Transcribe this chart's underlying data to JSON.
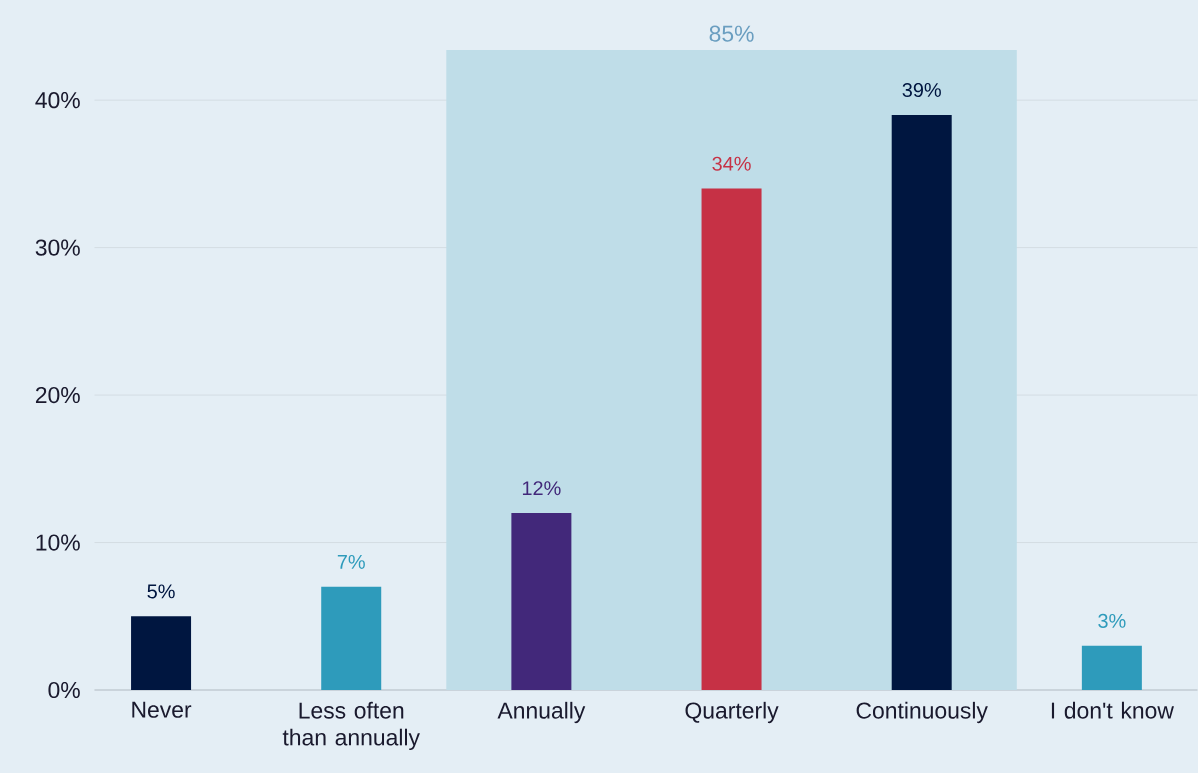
{
  "chart_data": {
    "type": "bar",
    "categories": [
      "Never",
      "Less often than annually",
      "Annually",
      "Quarterly",
      "Continuously",
      "I don't know"
    ],
    "values": [
      5,
      7,
      12,
      34,
      39,
      3
    ],
    "colors": [
      "#001640",
      "#2e9bbb",
      "#42287a",
      "#c63145",
      "#001640",
      "#2e9bbb"
    ],
    "value_labels": [
      "5%",
      "7%",
      "12%",
      "34%",
      "39%",
      "3%"
    ],
    "ylim": [
      0,
      43.4
    ],
    "yticks": [
      {
        "value": 0,
        "label": "0%"
      },
      {
        "value": 10,
        "label": "10%"
      },
      {
        "value": 20,
        "label": "20%"
      },
      {
        "value": 30,
        "label": "30%"
      },
      {
        "value": 40,
        "label": "40%"
      }
    ],
    "grid": "y",
    "bands": [
      {
        "axis": "x",
        "from": "Annually",
        "to": "Continuously",
        "label": "85%",
        "color": "#bfdde8"
      }
    ]
  }
}
